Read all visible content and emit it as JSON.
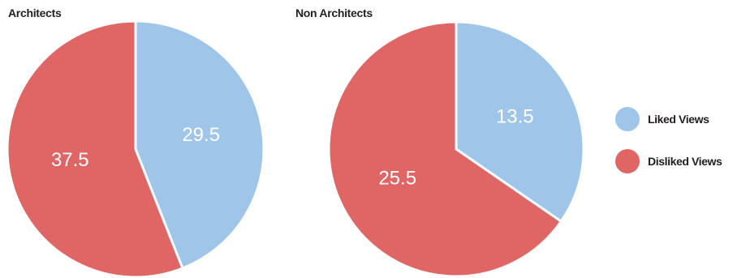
{
  "chart_data": [
    {
      "type": "pie",
      "title": "Architects",
      "series": [
        {
          "name": "Liked Views",
          "value": 29.5,
          "label": "29.5",
          "color": "#9fc5e8"
        },
        {
          "name": "Disliked Views",
          "value": 37.5,
          "label": "37.5",
          "color": "#e06666"
        }
      ]
    },
    {
      "type": "pie",
      "title": "Non Architects",
      "series": [
        {
          "name": "Liked Views",
          "value": 13.5,
          "label": "13.5",
          "color": "#9fc5e8"
        },
        {
          "name": "Disliked Views",
          "value": 25.5,
          "label": "25.5",
          "color": "#e06666"
        }
      ]
    }
  ],
  "legend": {
    "items": [
      {
        "label": "Liked Views",
        "color": "#9fc5e8"
      },
      {
        "label": "Disliked Views",
        "color": "#e06666"
      }
    ],
    "placement": "right"
  }
}
